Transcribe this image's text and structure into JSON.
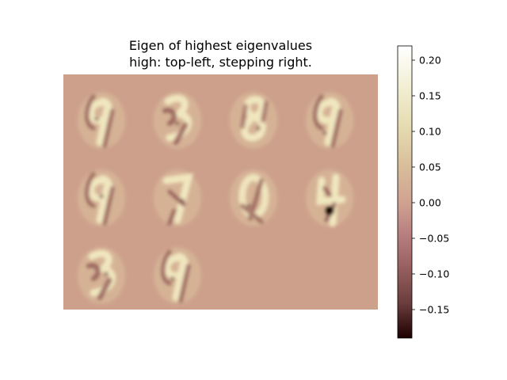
{
  "chart_data": {
    "type": "heatmap",
    "title": "Eigen of highest eigenvalues",
    "subtitle": "high: top-left, stepping right.",
    "grid": false,
    "layout": {
      "rows": 3,
      "cols": 4,
      "tiles_shown": 10
    },
    "colormap": "pink",
    "background_value": 0.0,
    "colorbar": {
      "vmin": -0.19,
      "vmax": 0.22,
      "ticks": [
        0.2,
        0.15,
        0.1,
        0.05,
        0.0,
        -0.05,
        -0.1,
        -0.15
      ],
      "tick_labels": [
        "0.20",
        "0.15",
        "0.10",
        "0.05",
        "0.00",
        "−0.05",
        "−0.10",
        "−0.15"
      ]
    },
    "tiles": [
      {
        "index": 1,
        "digit_shape": "9"
      },
      {
        "index": 2,
        "digit_shape": "3"
      },
      {
        "index": 3,
        "digit_shape": "8"
      },
      {
        "index": 4,
        "digit_shape": "9"
      },
      {
        "index": 5,
        "digit_shape": "9"
      },
      {
        "index": 6,
        "digit_shape": "7"
      },
      {
        "index": 7,
        "digit_shape": "0"
      },
      {
        "index": 8,
        "digit_shape": "4"
      },
      {
        "index": 9,
        "digit_shape": "3"
      },
      {
        "index": 10,
        "digit_shape": "9"
      }
    ]
  }
}
